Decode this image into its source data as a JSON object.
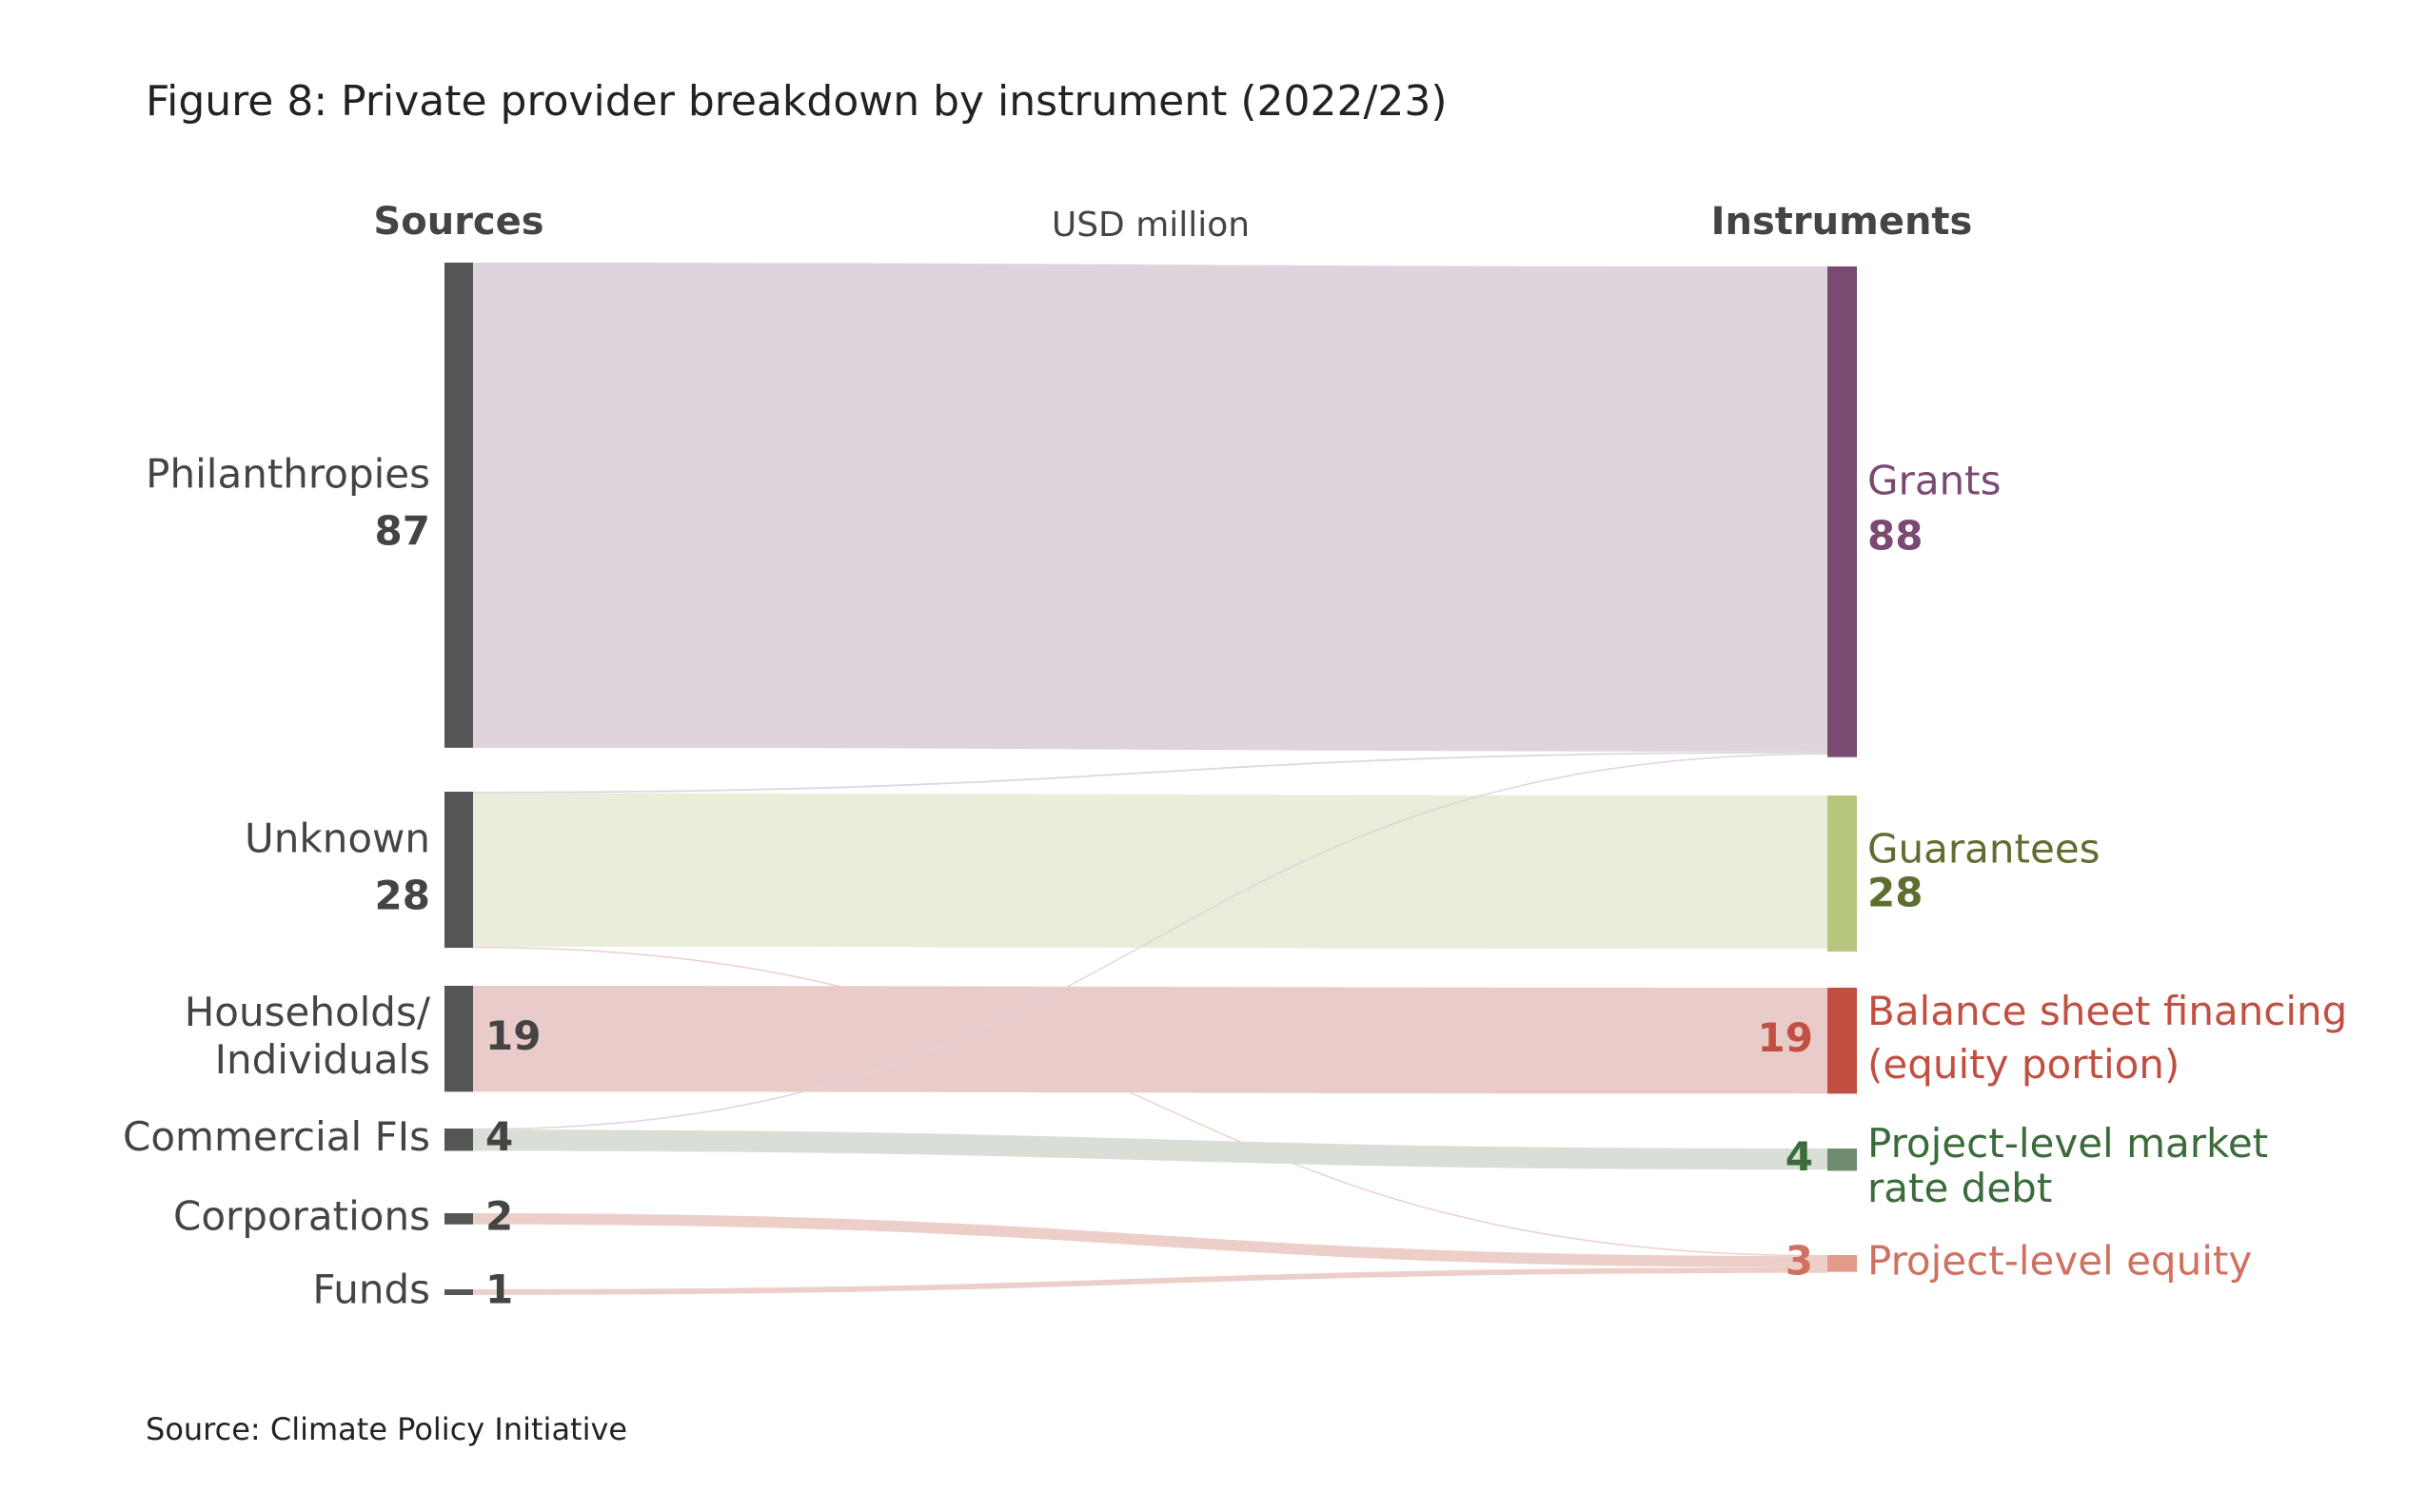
{
  "title": "Figure 8: Private provider breakdown by instrument (2022/23)",
  "unit_label": "USD million",
  "source": "Source: Climate Policy Initiative",
  "chart_data": {
    "type": "sankey",
    "left_header": "Sources",
    "right_header": "Instruments",
    "sources": [
      {
        "label": [
          "Philanthropies"
        ],
        "value": 87,
        "color": "#555555"
      },
      {
        "label": [
          "Unknown"
        ],
        "value": 28,
        "color": "#555555"
      },
      {
        "label": [
          "Households/",
          "Individuals"
        ],
        "value": 19,
        "color": "#555555"
      },
      {
        "label": [
          "Commercial FIs"
        ],
        "value": 4,
        "color": "#555555"
      },
      {
        "label": [
          "Corporations"
        ],
        "value": 2,
        "color": "#555555"
      },
      {
        "label": [
          "Funds"
        ],
        "value": 1,
        "color": "#555555"
      }
    ],
    "targets": [
      {
        "label": [
          "Grants"
        ],
        "value": 88,
        "color": "#7a4a72",
        "text_color": "#7a4a72",
        "link_color": "#dcd2dc"
      },
      {
        "label": [
          "Guarantees"
        ],
        "value": 28,
        "color": "#b7c67f",
        "text_color": "#5e6e30",
        "link_color": "#e8ecd8"
      },
      {
        "label": [
          "Balance sheet financing",
          "(equity portion)"
        ],
        "value": 19,
        "color": "#c14f42",
        "text_color": "#c14f42",
        "link_color": "#e8c9c6"
      },
      {
        "label": [
          "Project-level market",
          "rate debt"
        ],
        "value": 4,
        "color": "#6f8c6f",
        "text_color": "#3b6b3b",
        "link_color": "#d7dcd5"
      },
      {
        "label": [
          "Project-level equity"
        ],
        "value": 3,
        "color": "#e29a8b",
        "text_color": "#d07060",
        "link_color": "#ecccc6"
      }
    ],
    "links": [
      {
        "source": 0,
        "target": 0,
        "value": 87
      },
      {
        "source": 1,
        "target": 0,
        "value": 0.3
      },
      {
        "source": 1,
        "target": 1,
        "value": 27.5
      },
      {
        "source": 1,
        "target": 4,
        "value": 0.2
      },
      {
        "source": 2,
        "target": 2,
        "value": 19
      },
      {
        "source": 3,
        "target": 0,
        "value": 0.2
      },
      {
        "source": 3,
        "target": 3,
        "value": 3.8
      },
      {
        "source": 4,
        "target": 4,
        "value": 2
      },
      {
        "source": 5,
        "target": 4,
        "value": 1
      }
    ]
  }
}
